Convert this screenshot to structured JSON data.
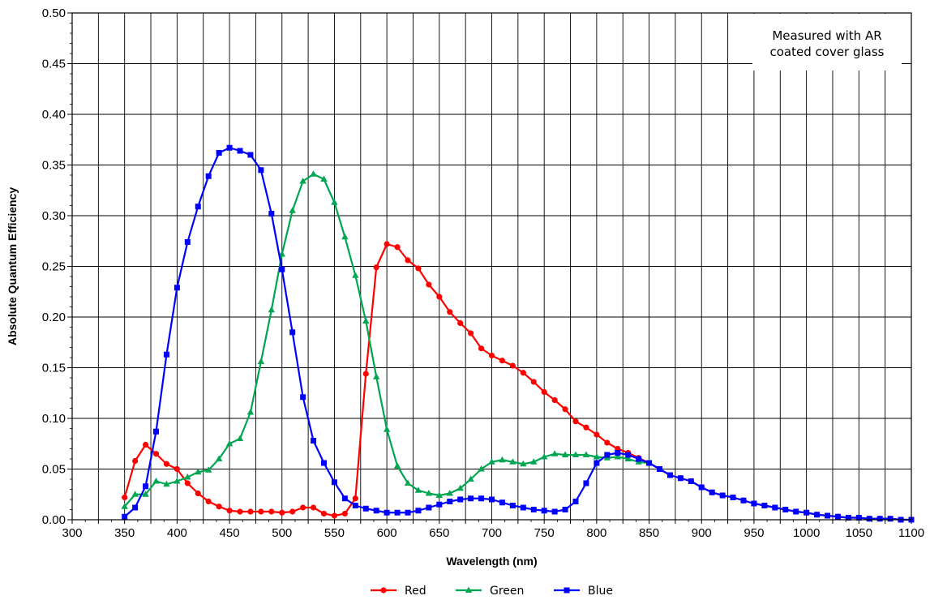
{
  "chart_data": {
    "type": "line",
    "xlabel": "Wavelength (nm)",
    "ylabel": "Absolute Quantum Efficiency",
    "xlim": [
      300,
      1100
    ],
    "ylim": [
      0,
      0.5
    ],
    "x_ticks": [
      "300",
      "350",
      "400",
      "450",
      "500",
      "550",
      "600",
      "650",
      "700",
      "750",
      "800",
      "850",
      "900",
      "950",
      "1000",
      "1050",
      "1100"
    ],
    "y_ticks": [
      "0.00",
      "0.05",
      "0.10",
      "0.15",
      "0.20",
      "0.25",
      "0.30",
      "0.35",
      "0.40",
      "0.45",
      "0.50"
    ],
    "grid": true,
    "annotation": [
      "Measured with AR",
      "coated cover glass"
    ],
    "legend_position": "bottom",
    "series": [
      {
        "name": "Red",
        "color": "#ff0000",
        "marker": "circle",
        "points": [
          [
            350,
            0.022
          ],
          [
            360,
            0.058
          ],
          [
            370,
            0.074
          ],
          [
            380,
            0.065
          ],
          [
            390,
            0.055
          ],
          [
            400,
            0.05
          ],
          [
            410,
            0.036
          ],
          [
            420,
            0.026
          ],
          [
            430,
            0.018
          ],
          [
            440,
            0.013
          ],
          [
            450,
            0.009
          ],
          [
            460,
            0.008
          ],
          [
            470,
            0.008
          ],
          [
            480,
            0.008
          ],
          [
            490,
            0.008
          ],
          [
            500,
            0.007
          ],
          [
            510,
            0.008
          ],
          [
            520,
            0.012
          ],
          [
            530,
            0.012
          ],
          [
            540,
            0.006
          ],
          [
            550,
            0.004
          ],
          [
            560,
            0.006
          ],
          [
            570,
            0.021
          ],
          [
            580,
            0.144
          ],
          [
            590,
            0.249
          ],
          [
            600,
            0.272
          ],
          [
            610,
            0.269
          ],
          [
            620,
            0.256
          ],
          [
            630,
            0.248
          ],
          [
            640,
            0.232
          ],
          [
            650,
            0.22
          ],
          [
            660,
            0.205
          ],
          [
            670,
            0.194
          ],
          [
            680,
            0.184
          ],
          [
            690,
            0.169
          ],
          [
            700,
            0.162
          ],
          [
            710,
            0.157
          ],
          [
            720,
            0.152
          ],
          [
            730,
            0.145
          ],
          [
            740,
            0.136
          ],
          [
            750,
            0.126
          ],
          [
            760,
            0.118
          ],
          [
            770,
            0.109
          ],
          [
            780,
            0.097
          ],
          [
            790,
            0.091
          ],
          [
            800,
            0.084
          ],
          [
            810,
            0.076
          ],
          [
            820,
            0.07
          ],
          [
            830,
            0.066
          ],
          [
            840,
            0.061
          ],
          [
            850,
            0.056
          ],
          [
            860,
            0.05
          ],
          [
            870,
            0.044
          ],
          [
            880,
            0.041
          ],
          [
            890,
            0.038
          ],
          [
            900,
            0.032
          ],
          [
            910,
            0.027
          ],
          [
            920,
            0.024
          ],
          [
            930,
            0.022
          ],
          [
            940,
            0.019
          ],
          [
            950,
            0.016
          ],
          [
            960,
            0.014
          ],
          [
            970,
            0.012
          ],
          [
            980,
            0.01
          ],
          [
            990,
            0.008
          ],
          [
            1000,
            0.007
          ],
          [
            1010,
            0.005
          ],
          [
            1020,
            0.004
          ],
          [
            1030,
            0.003
          ],
          [
            1040,
            0.002
          ],
          [
            1050,
            0.002
          ],
          [
            1060,
            0.001
          ],
          [
            1070,
            0.001
          ],
          [
            1080,
            0.001
          ],
          [
            1090,
            0.0
          ],
          [
            1100,
            0.0
          ]
        ]
      },
      {
        "name": "Green",
        "color": "#00a651",
        "marker": "triangle",
        "points": [
          [
            350,
            0.013
          ],
          [
            360,
            0.025
          ],
          [
            370,
            0.025
          ],
          [
            380,
            0.038
          ],
          [
            390,
            0.035
          ],
          [
            400,
            0.038
          ],
          [
            410,
            0.042
          ],
          [
            420,
            0.047
          ],
          [
            430,
            0.049
          ],
          [
            440,
            0.06
          ],
          [
            450,
            0.075
          ],
          [
            460,
            0.08
          ],
          [
            470,
            0.106
          ],
          [
            480,
            0.156
          ],
          [
            490,
            0.207
          ],
          [
            500,
            0.262
          ],
          [
            510,
            0.305
          ],
          [
            520,
            0.334
          ],
          [
            530,
            0.341
          ],
          [
            540,
            0.336
          ],
          [
            550,
            0.313
          ],
          [
            560,
            0.279
          ],
          [
            570,
            0.241
          ],
          [
            580,
            0.196
          ],
          [
            590,
            0.141
          ],
          [
            600,
            0.089
          ],
          [
            610,
            0.053
          ],
          [
            620,
            0.036
          ],
          [
            630,
            0.029
          ],
          [
            640,
            0.026
          ],
          [
            650,
            0.024
          ],
          [
            660,
            0.026
          ],
          [
            670,
            0.031
          ],
          [
            680,
            0.04
          ],
          [
            690,
            0.05
          ],
          [
            700,
            0.057
          ],
          [
            710,
            0.059
          ],
          [
            720,
            0.057
          ],
          [
            730,
            0.055
          ],
          [
            740,
            0.057
          ],
          [
            750,
            0.062
          ],
          [
            760,
            0.065
          ],
          [
            770,
            0.064
          ],
          [
            780,
            0.064
          ],
          [
            790,
            0.064
          ],
          [
            800,
            0.062
          ],
          [
            810,
            0.061
          ],
          [
            820,
            0.062
          ],
          [
            830,
            0.06
          ],
          [
            840,
            0.057
          ],
          [
            850,
            0.056
          ]
        ]
      },
      {
        "name": "Blue",
        "color": "#0000ff",
        "marker": "square",
        "points": [
          [
            350,
            0.003
          ],
          [
            360,
            0.012
          ],
          [
            370,
            0.033
          ],
          [
            380,
            0.087
          ],
          [
            390,
            0.163
          ],
          [
            400,
            0.229
          ],
          [
            410,
            0.274
          ],
          [
            420,
            0.309
          ],
          [
            430,
            0.339
          ],
          [
            440,
            0.362
          ],
          [
            450,
            0.367
          ],
          [
            460,
            0.364
          ],
          [
            470,
            0.36
          ],
          [
            480,
            0.345
          ],
          [
            490,
            0.302
          ],
          [
            500,
            0.247
          ],
          [
            510,
            0.185
          ],
          [
            520,
            0.121
          ],
          [
            530,
            0.078
          ],
          [
            540,
            0.056
          ],
          [
            550,
            0.037
          ],
          [
            560,
            0.021
          ],
          [
            570,
            0.014
          ],
          [
            580,
            0.011
          ],
          [
            590,
            0.009
          ],
          [
            600,
            0.007
          ],
          [
            610,
            0.007
          ],
          [
            620,
            0.007
          ],
          [
            630,
            0.009
          ],
          [
            640,
            0.012
          ],
          [
            650,
            0.015
          ],
          [
            660,
            0.018
          ],
          [
            670,
            0.02
          ],
          [
            680,
            0.021
          ],
          [
            690,
            0.021
          ],
          [
            700,
            0.02
          ],
          [
            710,
            0.017
          ],
          [
            720,
            0.014
          ],
          [
            730,
            0.012
          ],
          [
            740,
            0.01
          ],
          [
            750,
            0.009
          ],
          [
            760,
            0.008
          ],
          [
            770,
            0.01
          ],
          [
            780,
            0.018
          ],
          [
            790,
            0.036
          ],
          [
            800,
            0.056
          ],
          [
            810,
            0.064
          ],
          [
            820,
            0.066
          ],
          [
            830,
            0.064
          ],
          [
            840,
            0.06
          ],
          [
            850,
            0.056
          ],
          [
            860,
            0.05
          ],
          [
            870,
            0.044
          ],
          [
            880,
            0.041
          ],
          [
            890,
            0.038
          ],
          [
            900,
            0.032
          ],
          [
            910,
            0.027
          ],
          [
            920,
            0.024
          ],
          [
            930,
            0.022
          ],
          [
            940,
            0.019
          ],
          [
            950,
            0.016
          ],
          [
            960,
            0.014
          ],
          [
            970,
            0.012
          ],
          [
            980,
            0.01
          ],
          [
            990,
            0.008
          ],
          [
            1000,
            0.007
          ],
          [
            1010,
            0.005
          ],
          [
            1020,
            0.004
          ],
          [
            1030,
            0.003
          ],
          [
            1040,
            0.002
          ],
          [
            1050,
            0.002
          ],
          [
            1060,
            0.001
          ],
          [
            1070,
            0.001
          ],
          [
            1080,
            0.001
          ],
          [
            1090,
            0.0
          ],
          [
            1100,
            0.0
          ]
        ]
      }
    ]
  }
}
